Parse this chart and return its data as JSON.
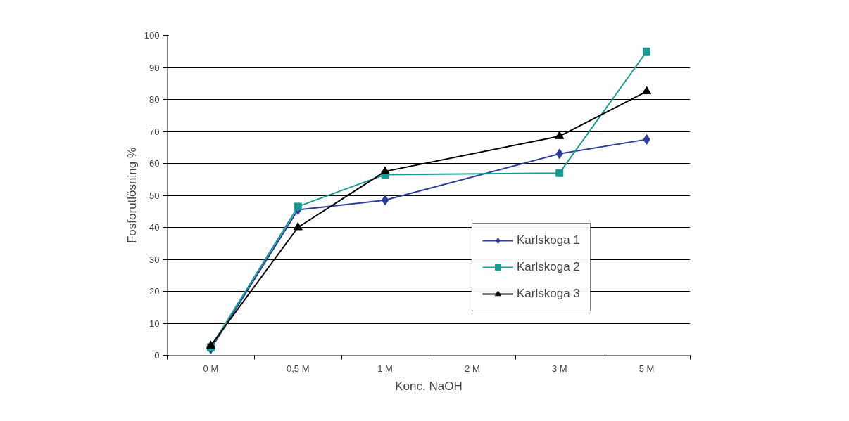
{
  "chart_data": {
    "type": "line",
    "xlabel": "Konc. NaOH",
    "ylabel": "Fosforutlösning %",
    "categories": [
      "0 M",
      "0,5 M",
      "1 M",
      "2 M",
      "3 M",
      "5 M"
    ],
    "series": [
      {
        "name": "Karlskoga 1",
        "color": "#2e3d98",
        "marker": "diamond",
        "values": [
          2,
          45.5,
          48.5,
          null,
          63,
          67.5
        ]
      },
      {
        "name": "Karlskoga 2",
        "color": "#1a9a94",
        "marker": "square",
        "values": [
          2.5,
          46.5,
          56.5,
          null,
          57,
          95
        ]
      },
      {
        "name": "Karlskoga 3",
        "color": "#000000",
        "marker": "triangle",
        "values": [
          3,
          40,
          57.5,
          null,
          68.5,
          82.5
        ]
      }
    ],
    "ylim": [
      0,
      100
    ],
    "yticks": [
      0,
      10,
      20,
      30,
      40,
      50,
      60,
      70,
      80,
      90,
      100
    ],
    "grid": "y",
    "legend": "right",
    "line_style": "solid"
  }
}
